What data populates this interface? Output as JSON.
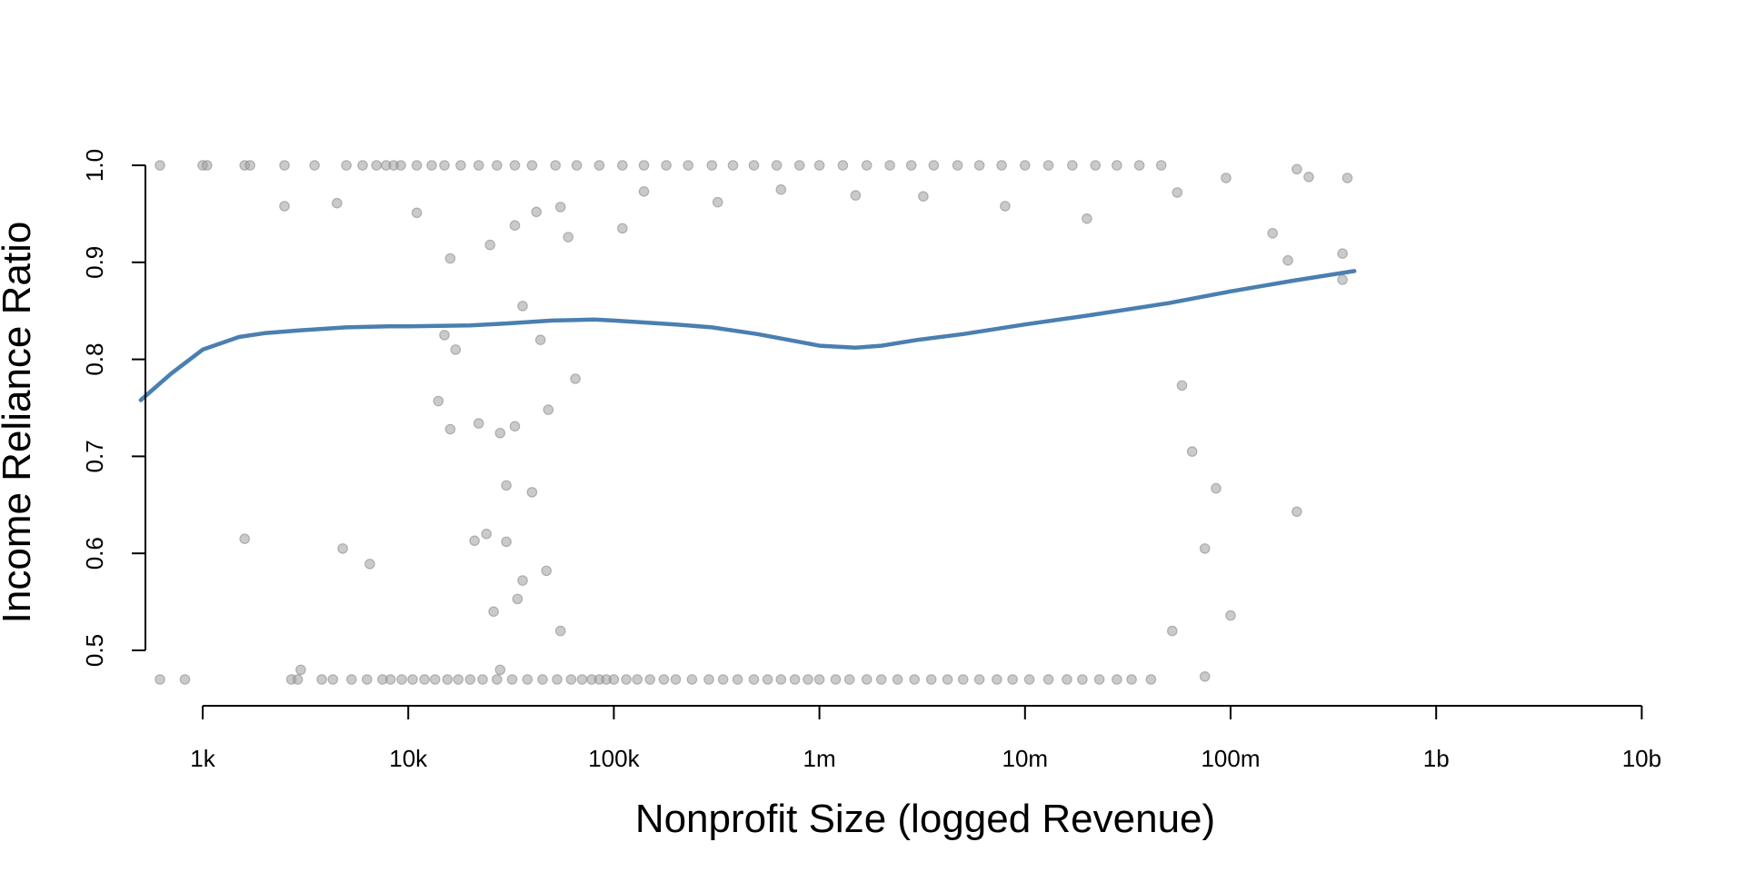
{
  "chart_data": {
    "type": "scatter",
    "title": "",
    "xlabel": "Nonprofit Size (logged Revenue)",
    "ylabel": "Income Reliance Ratio",
    "x_scale": "log",
    "xlim": [
      500,
      10000000000
    ],
    "ylim": [
      0.47,
      1.0
    ],
    "grid": false,
    "x_ticks": [
      {
        "value": 1000,
        "label": "1k"
      },
      {
        "value": 10000,
        "label": "10k"
      },
      {
        "value": 100000,
        "label": "100k"
      },
      {
        "value": 1000000,
        "label": "1m"
      },
      {
        "value": 10000000,
        "label": "10m"
      },
      {
        "value": 100000000,
        "label": "100m"
      },
      {
        "value": 1000000000,
        "label": "1b"
      },
      {
        "value": 10000000000,
        "label": "10b"
      }
    ],
    "y_ticks": [
      {
        "value": 0.5,
        "label": "0.5"
      },
      {
        "value": 0.6,
        "label": "0.6"
      },
      {
        "value": 0.7,
        "label": "0.7"
      },
      {
        "value": 0.8,
        "label": "0.8"
      },
      {
        "value": 0.9,
        "label": "0.9"
      },
      {
        "value": 1.0,
        "label": "1.0"
      }
    ],
    "colors": {
      "points_fill": "#9e9e9e",
      "points_stroke": "#8a8a8a",
      "smooth_line": "#4a7fb0",
      "axes": "#000000"
    },
    "series": [
      {
        "type": "scatter",
        "points": [
          [
            620,
            1.0
          ],
          [
            1000,
            1.0
          ],
          [
            1050,
            1.0
          ],
          [
            1600,
            1.0
          ],
          [
            1700,
            1.0
          ],
          [
            2500,
            1.0
          ],
          [
            3500,
            1.0
          ],
          [
            5000,
            1.0
          ],
          [
            6000,
            1.0
          ],
          [
            7000,
            1.0
          ],
          [
            7800,
            1.0
          ],
          [
            8500,
            1.0
          ],
          [
            9200,
            1.0
          ],
          [
            11000,
            1.0
          ],
          [
            13000,
            1.0
          ],
          [
            15000,
            1.0
          ],
          [
            18000,
            1.0
          ],
          [
            22000,
            1.0
          ],
          [
            27000,
            1.0
          ],
          [
            33000,
            1.0
          ],
          [
            40000,
            1.0
          ],
          [
            52000,
            1.0
          ],
          [
            66000,
            1.0
          ],
          [
            85000,
            1.0
          ],
          [
            110000,
            1.0
          ],
          [
            140000,
            1.0
          ],
          [
            180000,
            1.0
          ],
          [
            230000,
            1.0
          ],
          [
            300000,
            1.0
          ],
          [
            380000,
            1.0
          ],
          [
            480000,
            1.0
          ],
          [
            620000,
            1.0
          ],
          [
            800000,
            1.0
          ],
          [
            1000000,
            1.0
          ],
          [
            1300000,
            1.0
          ],
          [
            1700000,
            1.0
          ],
          [
            2200000,
            1.0
          ],
          [
            2800000,
            1.0
          ],
          [
            3600000,
            1.0
          ],
          [
            4700000,
            1.0
          ],
          [
            6000000,
            1.0
          ],
          [
            7700000,
            1.0
          ],
          [
            10000000,
            1.0
          ],
          [
            13000000,
            1.0
          ],
          [
            17000000,
            1.0
          ],
          [
            22000000,
            1.0
          ],
          [
            28000000,
            1.0
          ],
          [
            36000000,
            1.0
          ],
          [
            46000000,
            1.0
          ],
          [
            2500,
            0.958
          ],
          [
            4500,
            0.961
          ],
          [
            11000,
            0.951
          ],
          [
            33000,
            0.938
          ],
          [
            42000,
            0.952
          ],
          [
            55000,
            0.957
          ],
          [
            140000,
            0.973
          ],
          [
            320000,
            0.962
          ],
          [
            650000,
            0.975
          ],
          [
            1500000,
            0.969
          ],
          [
            3200000,
            0.968
          ],
          [
            8000000,
            0.958
          ],
          [
            20000000,
            0.945
          ],
          [
            55000000,
            0.972
          ],
          [
            95000000,
            0.987
          ],
          [
            160000000,
            0.93
          ],
          [
            210000000,
            0.996
          ],
          [
            240000000,
            0.988
          ],
          [
            370000000,
            0.987
          ],
          [
            190000000,
            0.902
          ],
          [
            16000,
            0.904
          ],
          [
            25000,
            0.918
          ],
          [
            60000,
            0.926
          ],
          [
            110000,
            0.935
          ],
          [
            36000,
            0.855
          ],
          [
            44000,
            0.82
          ],
          [
            15000,
            0.825
          ],
          [
            17000,
            0.81
          ],
          [
            14000,
            0.757
          ],
          [
            16000,
            0.728
          ],
          [
            22000,
            0.734
          ],
          [
            28000,
            0.724
          ],
          [
            33000,
            0.731
          ],
          [
            1600,
            0.615
          ],
          [
            4800,
            0.605
          ],
          [
            6500,
            0.589
          ],
          [
            21000,
            0.613
          ],
          [
            24000,
            0.62
          ],
          [
            30000,
            0.612
          ],
          [
            36000,
            0.572
          ],
          [
            26000,
            0.54
          ],
          [
            34000,
            0.553
          ],
          [
            47000,
            0.582
          ],
          [
            55000,
            0.52
          ],
          [
            30000,
            0.67
          ],
          [
            40000,
            0.663
          ],
          [
            48000,
            0.748
          ],
          [
            65000,
            0.78
          ],
          [
            350000000,
            0.909
          ],
          [
            350000000,
            0.882
          ],
          [
            210000000,
            0.643
          ],
          [
            75000000,
            0.605
          ],
          [
            85000000,
            0.667
          ],
          [
            100000000,
            0.536
          ],
          [
            65000000,
            0.705
          ],
          [
            58000000,
            0.773
          ],
          [
            52000000,
            0.52
          ],
          [
            620,
            0.47
          ],
          [
            820,
            0.47
          ],
          [
            2700,
            0.47
          ],
          [
            2900,
            0.47
          ],
          [
            3000,
            0.48
          ],
          [
            3800,
            0.47
          ],
          [
            4300,
            0.47
          ],
          [
            5300,
            0.47
          ],
          [
            6300,
            0.47
          ],
          [
            7500,
            0.47
          ],
          [
            8200,
            0.47
          ],
          [
            9300,
            0.47
          ],
          [
            10500,
            0.47
          ],
          [
            12000,
            0.47
          ],
          [
            13500,
            0.47
          ],
          [
            15500,
            0.47
          ],
          [
            17500,
            0.47
          ],
          [
            20000,
            0.47
          ],
          [
            23000,
            0.47
          ],
          [
            27000,
            0.47
          ],
          [
            28000,
            0.48
          ],
          [
            32000,
            0.47
          ],
          [
            38000,
            0.47
          ],
          [
            45000,
            0.47
          ],
          [
            53000,
            0.47
          ],
          [
            62000,
            0.47
          ],
          [
            70000,
            0.47
          ],
          [
            78000,
            0.47
          ],
          [
            85000,
            0.47
          ],
          [
            92000,
            0.47
          ],
          [
            100000,
            0.47
          ],
          [
            115000,
            0.47
          ],
          [
            130000,
            0.47
          ],
          [
            150000,
            0.47
          ],
          [
            175000,
            0.47
          ],
          [
            200000,
            0.47
          ],
          [
            240000,
            0.47
          ],
          [
            290000,
            0.47
          ],
          [
            340000,
            0.47
          ],
          [
            400000,
            0.47
          ],
          [
            480000,
            0.47
          ],
          [
            560000,
            0.47
          ],
          [
            650000,
            0.47
          ],
          [
            760000,
            0.47
          ],
          [
            880000,
            0.47
          ],
          [
            1000000,
            0.47
          ],
          [
            1200000,
            0.47
          ],
          [
            1400000,
            0.47
          ],
          [
            1700000,
            0.47
          ],
          [
            2000000,
            0.47
          ],
          [
            2400000,
            0.47
          ],
          [
            2900000,
            0.47
          ],
          [
            3500000,
            0.47
          ],
          [
            4200000,
            0.47
          ],
          [
            5000000,
            0.47
          ],
          [
            6000000,
            0.47
          ],
          [
            7300000,
            0.47
          ],
          [
            8700000,
            0.47
          ],
          [
            10500000,
            0.47
          ],
          [
            13000000,
            0.47
          ],
          [
            16000000,
            0.47
          ],
          [
            19000000,
            0.47
          ],
          [
            23000000,
            0.47
          ],
          [
            28000000,
            0.47
          ],
          [
            33000000,
            0.47
          ],
          [
            41000000,
            0.47
          ],
          [
            75000000,
            0.473
          ]
        ]
      },
      {
        "type": "line",
        "points": [
          [
            500,
            0.758
          ],
          [
            700,
            0.785
          ],
          [
            1000,
            0.81
          ],
          [
            1500,
            0.823
          ],
          [
            2000,
            0.827
          ],
          [
            3000,
            0.83
          ],
          [
            5000,
            0.833
          ],
          [
            8000,
            0.834
          ],
          [
            10000,
            0.834
          ],
          [
            20000,
            0.835
          ],
          [
            30000,
            0.837
          ],
          [
            50000,
            0.84
          ],
          [
            80000,
            0.841
          ],
          [
            100000,
            0.84
          ],
          [
            200000,
            0.836
          ],
          [
            300000,
            0.833
          ],
          [
            500000,
            0.826
          ],
          [
            800000,
            0.818
          ],
          [
            1000000,
            0.814
          ],
          [
            1500000,
            0.812
          ],
          [
            2000000,
            0.814
          ],
          [
            3000000,
            0.82
          ],
          [
            5000000,
            0.826
          ],
          [
            10000000,
            0.836
          ],
          [
            20000000,
            0.845
          ],
          [
            50000000,
            0.858
          ],
          [
            100000000,
            0.87
          ],
          [
            200000000,
            0.881
          ],
          [
            400000000,
            0.891
          ]
        ]
      }
    ]
  }
}
